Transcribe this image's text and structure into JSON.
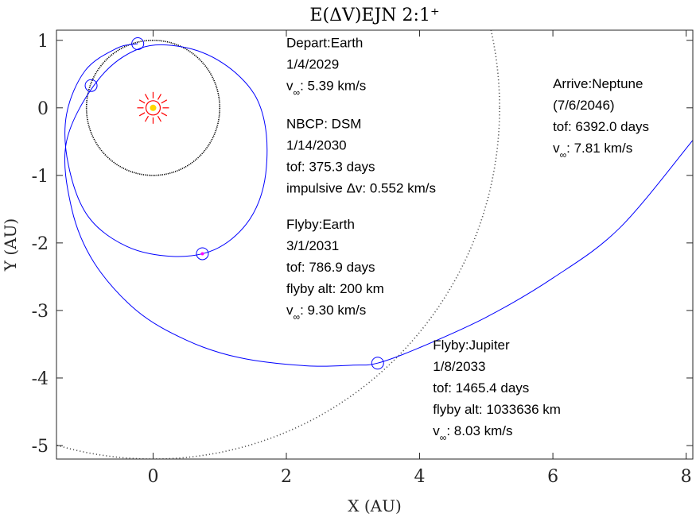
{
  "chart_data": {
    "type": "line",
    "title": "E(ΔV)EJN 2:1⁺",
    "xlabel": "X (AU)",
    "ylabel": "Y (AU)",
    "xlim": [
      -1.45,
      8.1
    ],
    "ylim": [
      -5.2,
      1.15
    ],
    "xticks": [
      0,
      2,
      4,
      6,
      8
    ],
    "yticks": [
      1,
      0,
      -1,
      -2,
      -3,
      -4,
      -5
    ],
    "grid": false,
    "colors": {
      "trajectory": "#0000ff",
      "earth_orbit": "#000000",
      "jupiter_orbit": "#555555",
      "sun": "#ff0000",
      "sun_core": "#ffd700",
      "marker": "#0000ff",
      "dsm_dot": "#ff00ff"
    },
    "series": [
      {
        "kind": "earth-orbit",
        "center": [
          0,
          0
        ],
        "radius": 1.0
      },
      {
        "kind": "jupiter-orbit",
        "center": [
          0,
          0
        ],
        "radius": 5.2
      },
      {
        "kind": "trajectory",
        "x": [
          -0.23,
          -0.55,
          -1.02,
          -1.3,
          -1.27,
          -0.98,
          -0.4,
          0.3,
          0.92,
          1.4,
          1.66,
          1.7,
          1.52,
          1.05,
          0.45,
          -0.2,
          -0.82,
          -1.3,
          -1.22,
          -0.88,
          -0.25,
          0.5,
          1.3,
          2.3,
          3.0,
          3.37,
          4.0,
          5.0,
          6.0,
          7.0,
          8.1
        ],
        "y": [
          0.95,
          0.88,
          0.55,
          -0.1,
          -0.85,
          -1.6,
          -2.05,
          -2.2,
          -2.1,
          -1.72,
          -1.15,
          -0.4,
          0.2,
          0.66,
          0.9,
          0.88,
          0.42,
          -0.5,
          -1.5,
          -2.3,
          -3.0,
          -3.44,
          -3.7,
          -3.82,
          -3.81,
          -3.78,
          -3.55,
          -3.1,
          -2.52,
          -1.78,
          -0.48
        ]
      }
    ],
    "markers": [
      {
        "name": "depart-earth",
        "x": -0.23,
        "y": 0.95
      },
      {
        "name": "earth-position",
        "x": -0.93,
        "y": 0.33
      },
      {
        "name": "dsm",
        "x": 0.74,
        "y": -2.16
      },
      {
        "name": "jupiter-flyby",
        "x": 3.37,
        "y": -3.78
      }
    ],
    "sun": {
      "x": 0,
      "y": 0
    },
    "annotations": [
      {
        "name": "depart-annotation",
        "x": 2.0,
        "y": 0.9,
        "lines": [
          "Depart:Earth",
          "1/4/2029",
          "|v|∞|: 5.39 km/s"
        ]
      },
      {
        "name": "dsm-annotation",
        "x": 2.0,
        "y": -0.3,
        "lines": [
          "NBCP:  DSM",
          "1/14/2030",
          "tof: 375.3 days",
          "impulsive Δv: 0.552 km/s"
        ]
      },
      {
        "name": "earth-flyby-annotation",
        "x": 2.0,
        "y": -1.79,
        "lines": [
          "Flyby:Earth",
          "3/1/2031",
          "tof: 786.9 days",
          "flyby alt: 200 km",
          "|v|∞|: 9.30 km/s"
        ]
      },
      {
        "name": "neptune-annotation",
        "x": 6.0,
        "y": 0.29,
        "lines": [
          "Arrive:Neptune",
          "(7/6/2046)",
          "tof: 6392.0 days",
          "|v|∞|: 7.81 km/s"
        ]
      },
      {
        "name": "jupiter-flyby-annotation",
        "x": 4.2,
        "y": -3.58,
        "lines": [
          "Flyby:Jupiter",
          "1/8/2033",
          "tof: 1465.4 days",
          "flyby alt: 1033636 km",
          "|v|∞|: 8.03 km/s"
        ]
      }
    ]
  }
}
